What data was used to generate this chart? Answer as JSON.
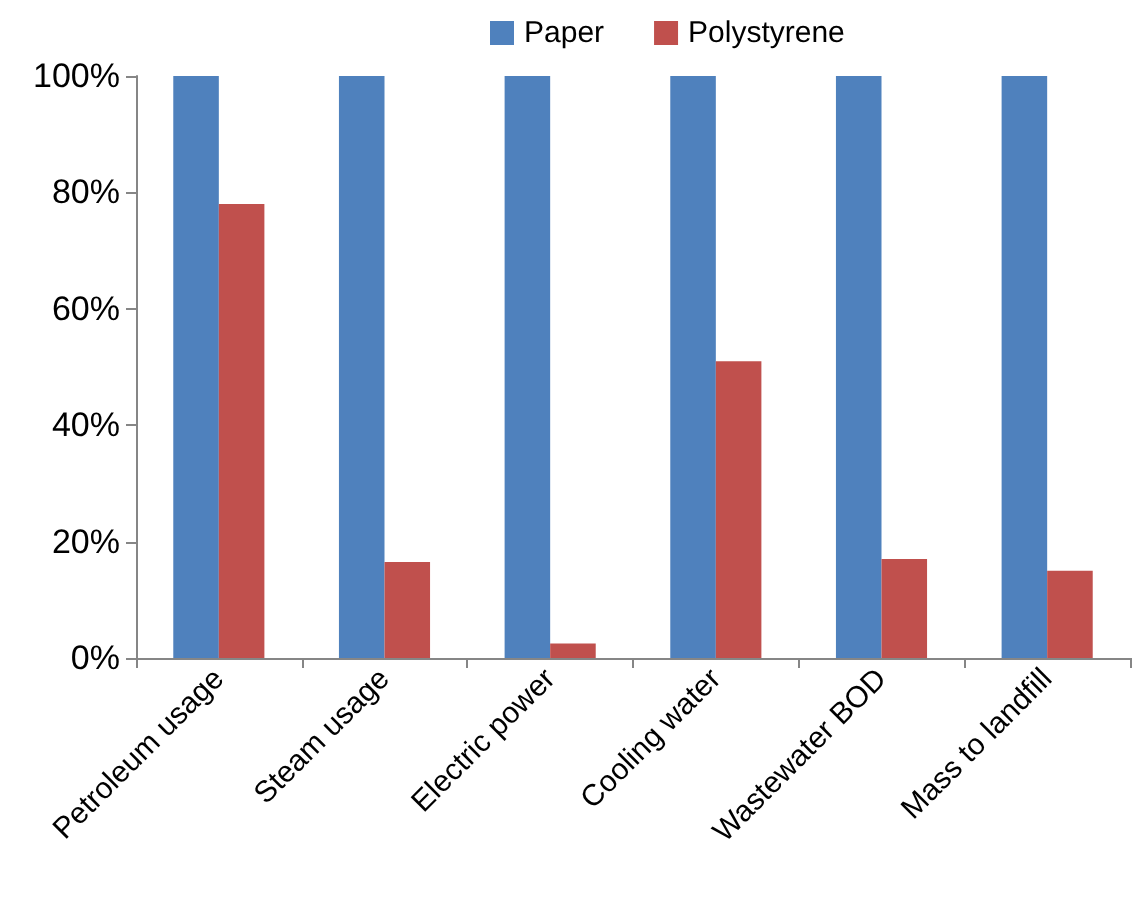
{
  "chart_data": {
    "type": "bar",
    "categories": [
      "Petroleum usage",
      "Steam usage",
      "Electric power",
      "Cooling water",
      "Wastewater BOD",
      "Mass to landfill"
    ],
    "series": [
      {
        "name": "Paper",
        "color": "#4f81bd",
        "values": [
          100,
          100,
          100,
          100,
          100,
          100
        ]
      },
      {
        "name": "Polystyrene",
        "color": "#c0504d",
        "values": [
          78,
          16.5,
          2.5,
          51,
          17,
          15
        ]
      }
    ],
    "ylim": [
      0,
      100
    ],
    "yticks": [
      {
        "value": 0,
        "label": "0%"
      },
      {
        "value": 20,
        "label": "20%"
      },
      {
        "value": 40,
        "label": "40%"
      },
      {
        "value": 60,
        "label": "60%"
      },
      {
        "value": 80,
        "label": "80%"
      },
      {
        "value": 100,
        "label": "100%"
      }
    ],
    "grid": false,
    "legend": "top"
  }
}
